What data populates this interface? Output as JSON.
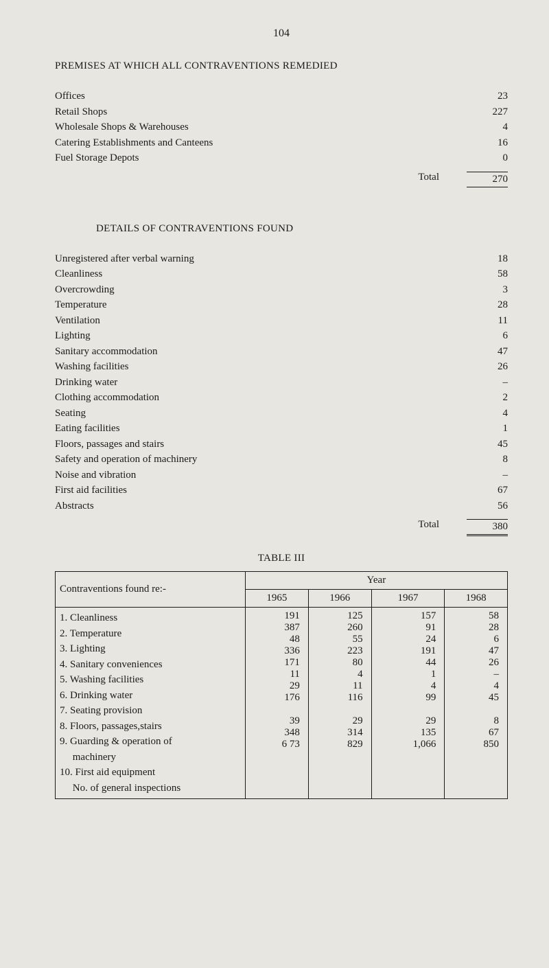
{
  "page_number": "104",
  "section1": {
    "title": "PREMISES AT WHICH ALL CONTRAVENTIONS REMEDIED",
    "rows": [
      {
        "label": "Offices",
        "value": "23"
      },
      {
        "label": "Retail Shops",
        "value": "227"
      },
      {
        "label": "Wholesale Shops & Warehouses",
        "value": "4"
      },
      {
        "label": "Catering Establishments and Canteens",
        "value": "16"
      },
      {
        "label": "Fuel Storage Depots",
        "value": "0"
      }
    ],
    "total_label": "Total",
    "total_value": "270"
  },
  "section2": {
    "title": "DETAILS OF CONTRAVENTIONS FOUND",
    "rows": [
      {
        "label": "Unregistered after verbal warning",
        "value": "18"
      },
      {
        "label": "Cleanliness",
        "value": "58"
      },
      {
        "label": "Overcrowding",
        "value": "3"
      },
      {
        "label": "Temperature",
        "value": "28"
      },
      {
        "label": "Ventilation",
        "value": "11"
      },
      {
        "label": "Lighting",
        "value": "6"
      },
      {
        "label": "Sanitary accommodation",
        "value": "47"
      },
      {
        "label": "Washing facilities",
        "value": "26"
      },
      {
        "label": "Drinking water",
        "value": "–"
      },
      {
        "label": "Clothing accommodation",
        "value": "2"
      },
      {
        "label": "Seating",
        "value": "4"
      },
      {
        "label": "Eating facilities",
        "value": "1"
      },
      {
        "label": "Floors, passages and stairs",
        "value": "45"
      },
      {
        "label": "Safety and operation of machinery",
        "value": "8"
      },
      {
        "label": "Noise and vibration",
        "value": "–"
      },
      {
        "label": "First aid facilities",
        "value": "67"
      },
      {
        "label": "Abstracts",
        "value": "56"
      }
    ],
    "total_label": "Total",
    "total_value": "380"
  },
  "table3": {
    "title": "TABLE III",
    "header_label": "Contraventions found re:-",
    "year_header": "Year",
    "years": [
      "1965",
      "1966",
      "1967",
      "1968"
    ],
    "rows": [
      {
        "label": "1. Cleanliness",
        "cells": [
          "191",
          "125",
          "157",
          "58"
        ]
      },
      {
        "label": "2. Temperature",
        "cells": [
          "387",
          "260",
          "91",
          "28"
        ]
      },
      {
        "label": "3. Lighting",
        "cells": [
          "48",
          "55",
          "24",
          "6"
        ]
      },
      {
        "label": "4. Sanitary conveniences",
        "cells": [
          "336",
          "223",
          "191",
          "47"
        ]
      },
      {
        "label": "5. Washing facilities",
        "cells": [
          "171",
          "80",
          "44",
          "26"
        ]
      },
      {
        "label": "6. Drinking water",
        "cells": [
          "11",
          "4",
          "1",
          "–"
        ]
      },
      {
        "label": "7. Seating provision",
        "cells": [
          "29",
          "11",
          "4",
          "4"
        ]
      },
      {
        "label": "8. Floors, passages,stairs",
        "cells": [
          "176",
          "116",
          "99",
          "45"
        ]
      },
      {
        "label": "9. Guarding & operation of\n     machinery",
        "cells": [
          "39",
          "29",
          "29",
          "8"
        ]
      },
      {
        "label": "10. First aid equipment",
        "cells": [
          "348",
          "314",
          "135",
          "67"
        ]
      },
      {
        "label": "     No. of general inspections",
        "cells": [
          "6 73",
          "829",
          "1,066",
          "850"
        ]
      }
    ]
  }
}
